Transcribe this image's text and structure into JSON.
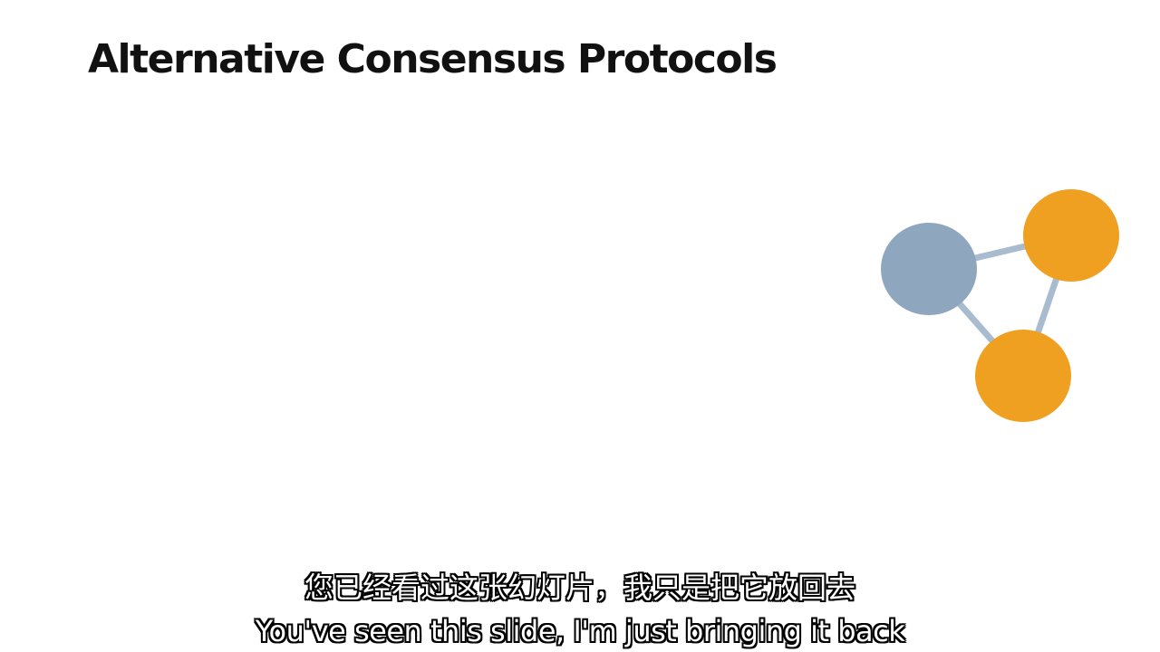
{
  "slide": {
    "title": "Alternative Consensus Protocols"
  },
  "network_graphic": {
    "nodes": [
      {
        "name": "node-gray",
        "color": "#8fa6bf"
      },
      {
        "name": "node-orange-top",
        "color": "#f0a020"
      },
      {
        "name": "node-orange-bottom",
        "color": "#f0a020"
      }
    ],
    "edge_color": "#a9bccf"
  },
  "subtitles": {
    "chinese": "您已经看过这张幻灯片，我只是把它放回去",
    "english": "You've seen this slide, I'm just bringing it back"
  }
}
